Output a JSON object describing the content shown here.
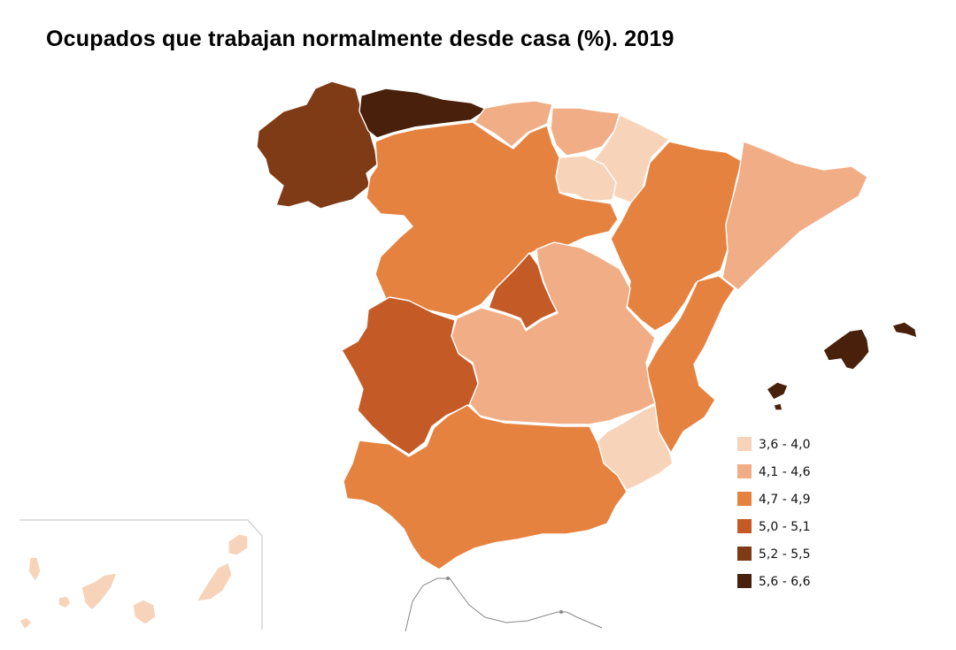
{
  "title": "Ocupados que trabajan normalmente desde casa (%). 2019",
  "legend": {
    "classes": [
      {
        "label": "3,6 - 4,0",
        "color": "#f7d3ba"
      },
      {
        "label": "4,1 - 4,6",
        "color": "#f0ad86"
      },
      {
        "label": "4,7 - 4,9",
        "color": "#e6823f"
      },
      {
        "label": "5,0 - 5,1",
        "color": "#c45a26"
      },
      {
        "label": "5,2 - 5,5",
        "color": "#7f3a16"
      },
      {
        "label": "5,6 - 6,6",
        "color": "#48200c"
      }
    ]
  },
  "regions": [
    {
      "id": "galicia",
      "class": 4
    },
    {
      "id": "asturias",
      "class": 5
    },
    {
      "id": "cantabria",
      "class": 1
    },
    {
      "id": "pais-vasco",
      "class": 1
    },
    {
      "id": "navarra",
      "class": 0
    },
    {
      "id": "la-rioja",
      "class": 0
    },
    {
      "id": "castilla-y-leon",
      "class": 2
    },
    {
      "id": "aragon",
      "class": 2
    },
    {
      "id": "cataluna",
      "class": 1
    },
    {
      "id": "madrid",
      "class": 3
    },
    {
      "id": "castilla-la-mancha",
      "class": 1
    },
    {
      "id": "extremadura",
      "class": 3
    },
    {
      "id": "valencia",
      "class": 2
    },
    {
      "id": "murcia",
      "class": 0
    },
    {
      "id": "andalucia",
      "class": 2
    },
    {
      "id": "baleares",
      "class": 5
    },
    {
      "id": "canarias",
      "class": 0
    }
  ]
}
